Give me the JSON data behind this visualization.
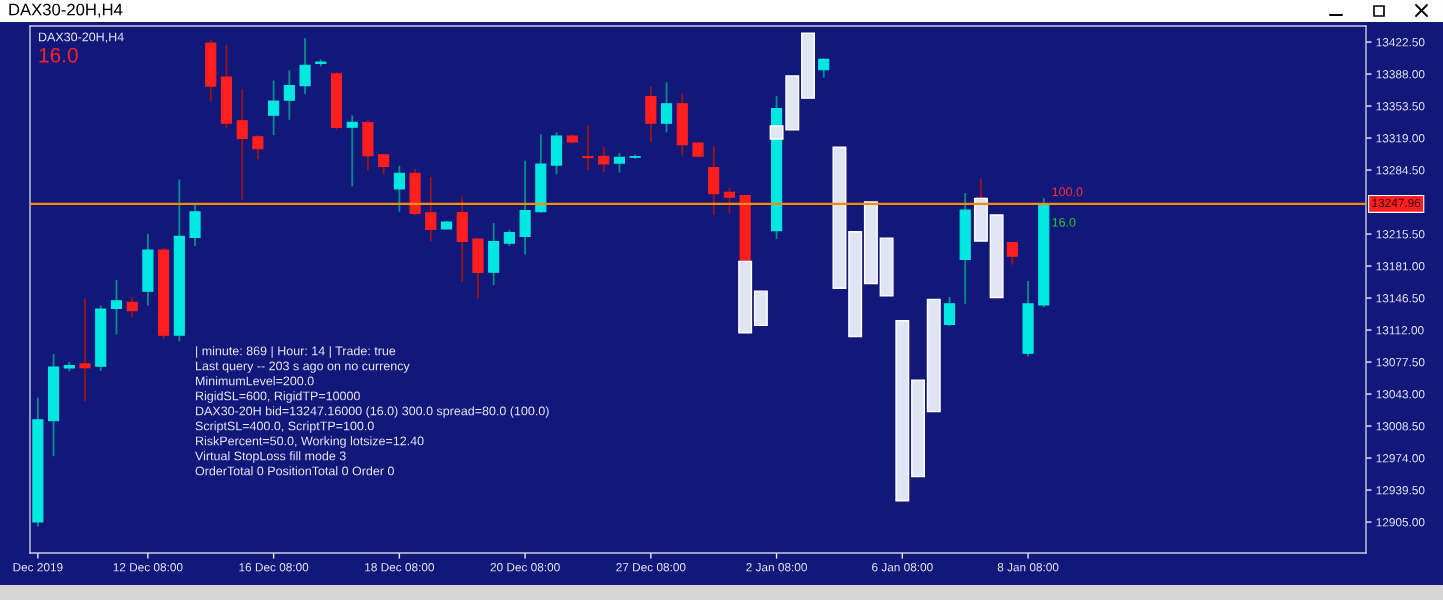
{
  "chart_data": {
    "type": "candlestick",
    "title": "DAX30-20H,H4",
    "subtitle": "DAX30-20H,H4",
    "categories": [
      "Dec 2019",
      null,
      null,
      null,
      null,
      null,
      null,
      "12 Dec 08:00",
      null,
      null,
      null,
      null,
      null,
      null,
      null,
      "16 Dec 08:00",
      null,
      null,
      null,
      null,
      null,
      null,
      null,
      "18 Dec 08:00",
      null,
      null,
      null,
      null,
      null,
      null,
      null,
      "20 Dec 08:00",
      null,
      null,
      null,
      null,
      null,
      null,
      null,
      "27 Dec 08:00",
      null,
      null,
      null,
      null,
      null,
      null,
      null,
      "2 Jan 08:00",
      null,
      null,
      null,
      null,
      null,
      null,
      null,
      "6 Jan 08:00",
      null,
      null,
      null,
      null,
      null,
      null,
      null,
      "8 Jan 08:00",
      null,
      null,
      null,
      null,
      null,
      null,
      null,
      null,
      null,
      null,
      null,
      null,
      null,
      null,
      null,
      null,
      null,
      null,
      null,
      null,
      null
    ],
    "ohlc": [
      [
        12905.0,
        13039.1,
        12900.0,
        13015.3
      ],
      [
        13014.2,
        13086.2,
        12975.9,
        13072.2
      ],
      [
        13071.1,
        13077.7,
        13067.4,
        13073.7
      ],
      [
        13075.5,
        13145.7,
        13035.5,
        13071.5
      ],
      [
        13073.0,
        13138.4,
        13067.8,
        13134.7
      ],
      [
        13135.4,
        13166.0,
        13107.1,
        13143.5
      ],
      [
        13142.0,
        13147.6,
        13125.5,
        13132.9
      ],
      [
        13153.8,
        13215.6,
        13138.4,
        13198.3
      ],
      [
        13198.3,
        13200.9,
        13102.4,
        13106.4
      ],
      [
        13106.4,
        13274.4,
        13099.8,
        13213.0
      ],
      [
        13211.9,
        13248.6,
        13202.7,
        13239.5
      ],
      [
        13421.4,
        13425.1,
        13358.9,
        13375.0
      ],
      [
        13384.7,
        13419.6,
        13329.5,
        13335.0
      ],
      [
        13337.6,
        13371.8,
        13252.3,
        13318.5
      ],
      [
        13320.3,
        13322.2,
        13296.4,
        13307.5
      ],
      [
        13343.5,
        13381.0,
        13322.2,
        13358.9
      ],
      [
        13359.7,
        13392.0,
        13338.7,
        13375.5
      ],
      [
        13375.5,
        13426.9,
        13366.3,
        13397.5
      ],
      [
        13399.4,
        13403.8,
        13396.4,
        13400.8
      ],
      [
        13388.3,
        13390.2,
        13327.7,
        13330.3
      ],
      [
        13330.6,
        13343.5,
        13267.0,
        13336.1
      ],
      [
        13335.8,
        13338.7,
        13283.6,
        13300.1
      ],
      [
        13300.9,
        13302.0,
        13279.9,
        13288.4
      ],
      [
        13264.1,
        13289.1,
        13239.5,
        13281.0
      ],
      [
        13281.0,
        13286.2,
        13235.8,
        13237.6
      ],
      [
        13238.4,
        13277.3,
        13207.5,
        13220.4
      ],
      [
        13221.1,
        13229.5,
        13220.4,
        13228.4
      ],
      [
        13238.7,
        13256.0,
        13164.1,
        13207.5
      ],
      [
        13210.1,
        13211.2,
        13145.7,
        13174.0
      ],
      [
        13174.4,
        13227.3,
        13160.4,
        13207.5
      ],
      [
        13205.6,
        13220.0,
        13202.7,
        13217.0
      ],
      [
        13213.0,
        13294.6,
        13193.5,
        13240.9
      ],
      [
        13239.5,
        13322.9,
        13238.4,
        13291.0
      ],
      [
        13289.8,
        13325.1,
        13279.9,
        13321.1
      ],
      [
        13321.1,
        13322.9,
        13313.0,
        13314.8
      ],
      [
        13299.0,
        13332.5,
        13284.7,
        13297.9
      ],
      [
        13299.4,
        13309.3,
        13282.5,
        13291.0
      ],
      [
        13292.0,
        13302.7,
        13281.7,
        13298.3
      ],
      [
        13298.3,
        13300.9,
        13296.8,
        13299.0
      ],
      [
        13363.7,
        13374.4,
        13314.8,
        13335.0
      ],
      [
        13335.0,
        13379.1,
        13325.1,
        13356.0
      ],
      [
        13356.0,
        13367.0,
        13300.1,
        13311.9
      ],
      [
        13313.7,
        13314.8,
        13297.9,
        13299.4
      ],
      [
        13287.3,
        13310.4,
        13235.8,
        13258.9
      ],
      [
        13260.4,
        13265.2,
        13237.6,
        13255.3
      ],
      [
        13257.1,
        13257.8,
        13186.2,
        13186.2
      ],
      null,
      [
        13219.2,
        13364.4,
        13210.1,
        13350.8
      ],
      null,
      null,
      [
        13392.7,
        13404.9,
        13383.9,
        13403.8
      ],
      null,
      null,
      null,
      null,
      null,
      null,
      null,
      [
        13118.1,
        13147.6,
        13116.3,
        13140.2
      ],
      [
        13188.0,
        13259.7,
        13140.2,
        13241.3
      ],
      [
        13254.2,
        13275.1,
        13254.2,
        13254.2
      ],
      null,
      [
        13206.4,
        13206.4,
        13182.5,
        13191.7
      ],
      [
        13086.9,
        13164.9,
        13083.2,
        13140.2
      ],
      [
        13139.1,
        13254.2,
        13136.5,
        13248.0
      ],
      null,
      null,
      null,
      null,
      null,
      null,
      null,
      null,
      null,
      null,
      null,
      null,
      null,
      null,
      null,
      null,
      null,
      null,
      null,
      null
    ],
    "colors": [
      "#00e8e0",
      "#00e8e0",
      "#00e8e0",
      "#ff1f1f",
      "#00e8e0",
      "#00e8e0",
      "#ff1f1f",
      "#00e8e0",
      "#ff1f1f",
      "#00e8e0",
      "#00e8e0",
      "#ff1f1f",
      "#ff1f1f",
      "#ff1f1f",
      "#ff1f1f",
      "#00e8e0",
      "#00e8e0",
      "#00e8e0",
      "#00e8e0",
      "#ff1f1f",
      "#00e8e0",
      "#ff1f1f",
      "#ff1f1f",
      "#00e8e0",
      "#ff1f1f",
      "#ff1f1f",
      "#00e8e0",
      "#ff1f1f",
      "#ff1f1f",
      "#00e8e0",
      "#00e8e0",
      "#00e8e0",
      "#00e8e0",
      "#00e8e0",
      "#ff1f1f",
      "#ff1f1f",
      "#ff1f1f",
      "#00e8e0",
      "#00e8e0",
      "#ff1f1f",
      "#00e8e0",
      "#ff1f1f",
      "#ff1f1f",
      "#ff1f1f",
      "#ff1f1f",
      "#ff1f1f",
      null,
      "#00e8e0",
      null,
      null,
      "#00e8e0",
      null,
      null,
      null,
      null,
      null,
      null,
      null,
      "#00e8e0",
      "#00e8e0",
      "#ff1f1f",
      null,
      "#ff1f1f",
      "#00e8e0",
      "#00e8e0",
      null,
      null,
      null,
      null,
      null,
      null,
      null,
      null,
      null,
      null,
      null,
      null,
      null,
      null,
      null,
      null,
      null,
      null,
      null,
      null
    ],
    "series": [
      {
        "type": "bar",
        "color": "#dfe5f3",
        "base": [
          null,
          null,
          null,
          null,
          null,
          null,
          null,
          null,
          null,
          null,
          null,
          null,
          null,
          null,
          null,
          null,
          null,
          null,
          null,
          null,
          null,
          null,
          null,
          null,
          null,
          null,
          null,
          null,
          null,
          null,
          null,
          null,
          null,
          null,
          null,
          null,
          null,
          null,
          null,
          null,
          null,
          null,
          null,
          null,
          null,
          13109,
          13117,
          13318,
          13328,
          13362,
          null,
          13157,
          13105,
          13162,
          13149,
          12928,
          12954,
          13024,
          null,
          null,
          13208,
          13147,
          null,
          null,
          null,
          null,
          null,
          null,
          null,
          null,
          null,
          null,
          null,
          null,
          null,
          null,
          null,
          null,
          null,
          null,
          null,
          null,
          null,
          null,
          null
        ],
        "values": [
          null,
          null,
          null,
          null,
          null,
          null,
          null,
          null,
          null,
          null,
          null,
          null,
          null,
          null,
          null,
          null,
          null,
          null,
          null,
          null,
          null,
          null,
          null,
          null,
          null,
          null,
          null,
          null,
          null,
          null,
          null,
          null,
          null,
          null,
          null,
          null,
          null,
          null,
          null,
          null,
          null,
          null,
          null,
          null,
          null,
          77,
          37,
          14,
          58,
          70,
          null,
          152,
          113,
          88,
          62,
          194,
          104,
          121,
          null,
          null,
          46,
          89,
          null,
          null,
          null,
          null,
          null,
          null,
          null,
          null,
          null,
          null,
          null,
          null,
          null,
          null,
          null,
          null,
          null,
          null,
          null,
          null,
          null,
          null,
          null
        ]
      }
    ],
    "ylim": [
      12871.6,
      13439.8
    ],
    "yticks": [
      {
        "value": 12905,
        "label": "12905.00"
      },
      {
        "value": 12939.5,
        "label": "12939.50"
      },
      {
        "value": 12974,
        "label": "12974.00"
      },
      {
        "value": 13008.5,
        "label": "13008.50"
      },
      {
        "value": 13043,
        "label": "13043.00"
      },
      {
        "value": 13077.5,
        "label": "13077.50"
      },
      {
        "value": 13112,
        "label": "13112.00"
      },
      {
        "value": 13146.5,
        "label": "13146.50"
      },
      {
        "value": 13181,
        "label": "13181.00"
      },
      {
        "value": 13215.5,
        "label": "13215.50"
      },
      {
        "value": 13284.5,
        "label": "13284.50"
      },
      {
        "value": 13319,
        "label": "13319.00"
      },
      {
        "value": 13353.5,
        "label": "13353.50"
      },
      {
        "value": 13388,
        "label": "13388.00"
      },
      {
        "value": 13422.5,
        "label": "13422.50"
      }
    ],
    "ref_lines": [
      {
        "axis": "y",
        "value": 13247.96,
        "label": "13247.96",
        "color": "#ff8c00"
      }
    ],
    "annotations": [
      "16.0",
      "| minute: 869 | Hour: 14 | Trade: true",
      "Last query -- 203 s ago on no currency",
      "MinimumLevel=200.0",
      "RigidSL=600, RigidTP=10000",
      "DAX30-20H bid=13247.16000 (16.0) 300.0 spread=80.0 (100.0)",
      "ScriptSL=400.0, ScriptTP=100.0",
      "RiskPercent=50.0, Working lotsize=12.40",
      "Virtual StopLoss fill mode 3",
      "OrderTotal 0 PositionTotal 0 Order 0",
      "100.0",
      "16.0"
    ]
  }
}
